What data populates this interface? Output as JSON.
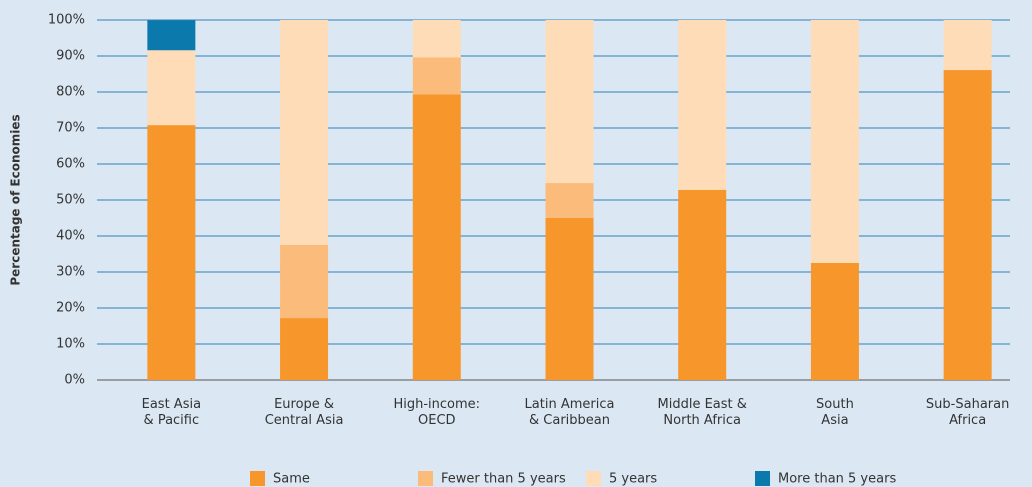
{
  "chart_data": {
    "type": "stacked_bar",
    "y_label": "Percentage of Economies",
    "categories": [
      [
        "East Asia",
        "& Pacific"
      ],
      [
        "Europe &",
        "Central Asia"
      ],
      [
        "High-income:",
        "OECD"
      ],
      [
        "Latin America",
        "& Caribbean"
      ],
      [
        "Middle East &",
        "North Africa"
      ],
      [
        "South",
        "Asia"
      ],
      [
        "Sub-Saharan",
        "Africa"
      ]
    ],
    "series": [
      {
        "name": "Same",
        "color": "#f7962a",
        "values": [
          70.8,
          17.2,
          79.3,
          45,
          52.8,
          32.5,
          86.1
        ]
      },
      {
        "name": "Fewer than 5 years",
        "color": "#fbbb7a",
        "values": [
          0,
          20.3,
          10.3,
          9.7,
          0,
          0,
          0
        ]
      },
      {
        "name": "5 years",
        "color": "#fddcb7",
        "values": [
          20.8,
          62.5,
          10.4,
          45.3,
          47.2,
          67.5,
          13.9
        ]
      },
      {
        "name": "More than 5 years",
        "color": "#0b79ab",
        "values": [
          8.3,
          0,
          0,
          0,
          0,
          0,
          0
        ]
      }
    ],
    "ylim": [
      0,
      100
    ],
    "yticks": [
      {
        "value": 0,
        "label": "0%"
      },
      {
        "value": 10,
        "label": "10%"
      },
      {
        "value": 20,
        "label": "20%"
      },
      {
        "value": 30,
        "label": "30%"
      },
      {
        "value": 40,
        "label": "40%"
      },
      {
        "value": 50,
        "label": "50%"
      },
      {
        "value": 60,
        "label": "60%"
      },
      {
        "value": 70,
        "label": "70%"
      },
      {
        "value": 80,
        "label": "80%"
      },
      {
        "value": 90,
        "label": "90%"
      },
      {
        "value": 100,
        "label": "100%"
      }
    ],
    "grid": true,
    "legend": "bottom"
  }
}
